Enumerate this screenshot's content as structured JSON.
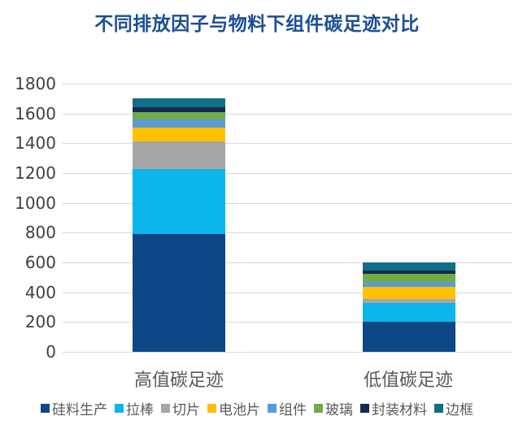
{
  "title": "不同排放因子与物料下组件碳足迹对比",
  "colors": {
    "title": "#1C4E94",
    "axis_tick_text": "#404040",
    "category_text": "#595959",
    "legend_text": "#595959",
    "gridline": "#D9D9D9",
    "background": "#FFFFFF"
  },
  "chart_data": {
    "type": "bar",
    "stacked": true,
    "title": "不同排放因子与物料下组件碳足迹对比",
    "xlabel": "",
    "ylabel": "",
    "categories": [
      "高值碳足迹",
      "低值碳足迹"
    ],
    "series": [
      {
        "name": "硅料生产",
        "color": "#0D4786",
        "values": [
          790,
          200
        ]
      },
      {
        "name": "拉棒",
        "color": "#0CB5EB",
        "values": [
          440,
          125
        ]
      },
      {
        "name": "切片",
        "color": "#A6A6A6",
        "values": [
          185,
          30
        ]
      },
      {
        "name": "电池片",
        "color": "#FFC000",
        "values": [
          90,
          80
        ]
      },
      {
        "name": "组件",
        "color": "#5B9BD5",
        "values": [
          55,
          35
        ]
      },
      {
        "name": "玻璃",
        "color": "#6FAC47",
        "values": [
          50,
          55
        ]
      },
      {
        "name": "封装材料",
        "color": "#16294E",
        "values": [
          30,
          20
        ]
      },
      {
        "name": "边框",
        "color": "#116E87",
        "values": [
          60,
          55
        ]
      }
    ],
    "ylim": [
      0,
      1800
    ],
    "ytick_step": 200,
    "yticks": [
      0,
      200,
      400,
      600,
      800,
      1000,
      1200,
      1400,
      1600,
      1800
    ],
    "grid": true,
    "legend_position": "bottom"
  }
}
